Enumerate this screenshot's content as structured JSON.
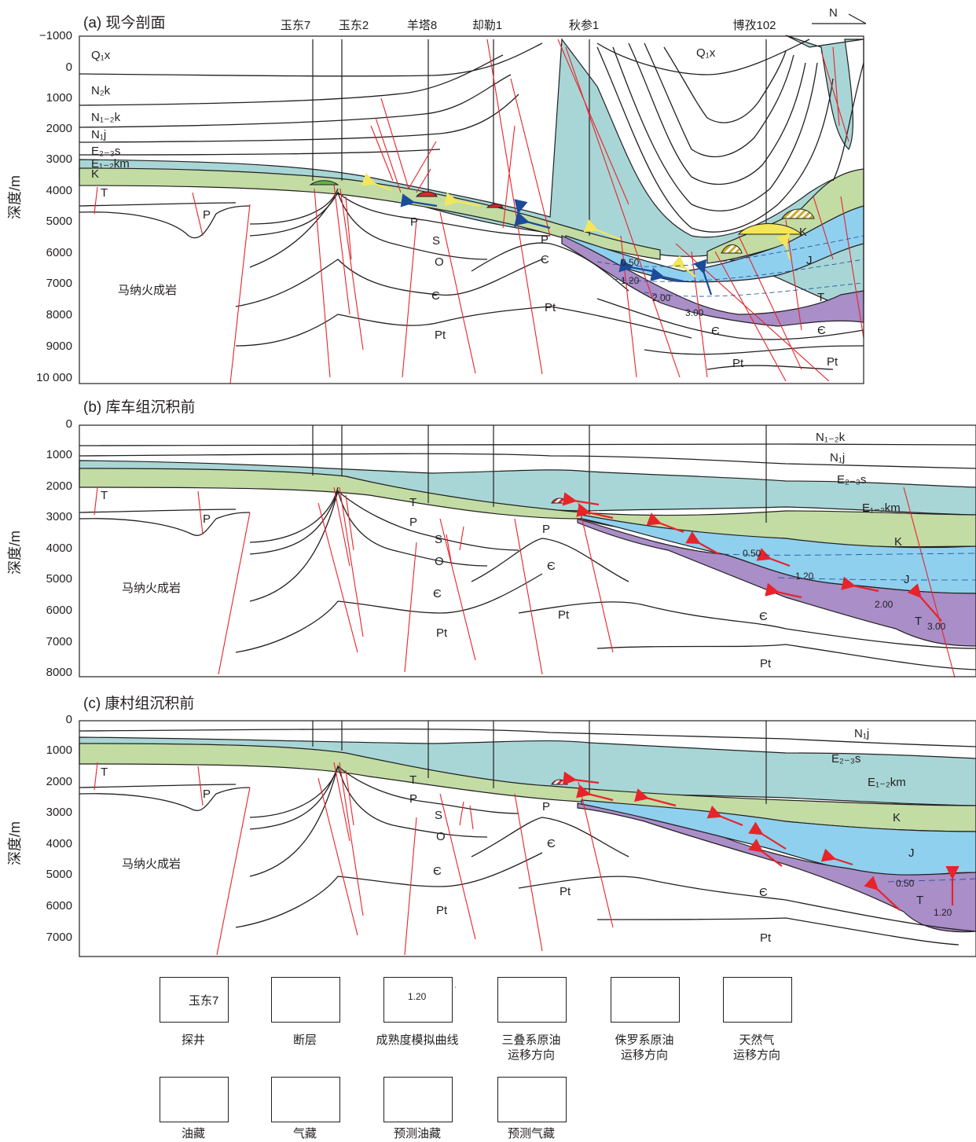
{
  "panels": {
    "a": {
      "title": "(a) 现今剖面"
    },
    "b": {
      "title": "(b) 库车组沉积前"
    },
    "c": {
      "title": "(c) 康村组沉积前"
    }
  },
  "y_label": "深度/m",
  "ticks_a": [
    "−1000",
    "0",
    "1000",
    "2000",
    "3000",
    "4000",
    "5000",
    "6000",
    "7000",
    "8000",
    "9000",
    "10 000"
  ],
  "ticks_b": [
    "0",
    "1000",
    "2000",
    "3000",
    "4000",
    "5000",
    "6000",
    "7000",
    "8000"
  ],
  "ticks_c": [
    "0",
    "1000",
    "2000",
    "3000",
    "4000",
    "5000",
    "6000",
    "7000"
  ],
  "wells": [
    "玉东7",
    "玉东2",
    "羊塔8",
    "却勒1",
    "秋参1",
    "博孜102"
  ],
  "north": "N",
  "rock": "马纳火成岩",
  "strata_a": [
    "Q₁x",
    "N₂k",
    "N₁₋₂k",
    "N₁j",
    "E₂₋₃s",
    "E₁₋₂km",
    "K",
    "T",
    "P",
    "S",
    "O",
    "Є",
    "Pt",
    "Q₁x",
    "K",
    "J",
    "T",
    "Є",
    "Pt",
    "P",
    "Є",
    "Pt"
  ],
  "maturity_a": [
    "0.50",
    "1.20",
    "2.00",
    "3.00"
  ],
  "strata_b": [
    "N₁₋₂k",
    "N₁j",
    "E₂₋₃s",
    "E₁₋₂km",
    "K",
    "J",
    "T",
    "T",
    "P",
    "S",
    "O",
    "Є",
    "Pt",
    "P",
    "Є",
    "Pt",
    "Є",
    "Pt"
  ],
  "maturity_b": [
    "0.50",
    "1.20",
    "2.00",
    "3.00"
  ],
  "strata_c": [
    "N₁j",
    "E₂₋₃s",
    "E₁₋₂km",
    "K",
    "J",
    "T",
    "T",
    "P",
    "S",
    "O",
    "Є",
    "Pt",
    "P",
    "Є",
    "Pt",
    "Є",
    "Pt"
  ],
  "maturity_c": [
    "0.50",
    "1.20"
  ],
  "legend": {
    "well_sample": "玉东7",
    "maturity_sample": "1.20",
    "items": [
      "探井",
      "断层",
      "成熟度模拟曲线",
      "三叠系原油\n运移方向",
      "侏罗系原油\n运移方向",
      "天然气\n运移方向",
      "油藏",
      "气藏",
      "预测油藏",
      "预测气藏"
    ]
  },
  "colors": {
    "paleogene_teal": "#a8d6d6",
    "cretaceous_green": "#c2dca4",
    "jurassic_blue": "#8fd0ee",
    "triassic_purple": "#a98ec8",
    "gas_yellow": "#f2e65a",
    "oil_red": "#e8232a",
    "gas_green": "#5fb846",
    "jurassic_oil_blue": "#1b4b9b",
    "fault_red": "#e8232a"
  }
}
